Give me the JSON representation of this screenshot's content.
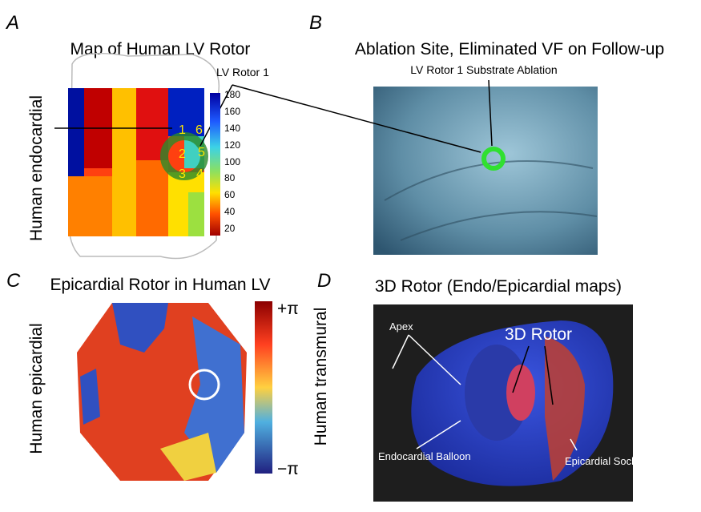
{
  "panels": [
    {
      "letter": "A",
      "title": "Map of Human LV Rotor",
      "side_label": "Human endocardial",
      "annotation": "LV Rotor 1",
      "sites": [
        "1",
        "6",
        "2",
        "5",
        "3",
        "4"
      ],
      "colorbar_ticks": [
        180,
        160,
        140,
        120,
        100,
        80,
        60,
        40,
        20
      ]
    },
    {
      "letter": "B",
      "title": "Ablation Site, Eliminated VF on Follow-up",
      "annotation": "LV Rotor 1 Substrate Ablation"
    },
    {
      "letter": "C",
      "title": "Epicardial Rotor in Human LV",
      "side_label": "Human epicardial",
      "colorbar_labels": [
        "+π",
        "−π"
      ]
    },
    {
      "letter": "D",
      "title": "3D Rotor (Endo/Epicardial maps)",
      "side_label": "Human transmural",
      "labels": [
        "3D Rotor",
        "Apex",
        "Endocardial Balloon",
        "Epicardial Sock"
      ]
    }
  ]
}
